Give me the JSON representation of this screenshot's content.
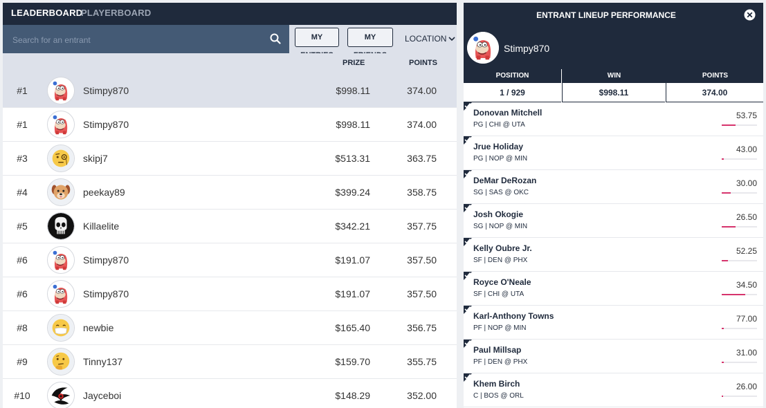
{
  "tabs": {
    "leaderboard": "LEADERBOARD",
    "playerboard": "PLAYERBOARD"
  },
  "search": {
    "placeholder": "Search for an entrant",
    "value": ""
  },
  "filters": {
    "my_entries": "MY ENTRIES",
    "my_friends": "MY FRIENDS",
    "location": "LOCATION"
  },
  "columns": {
    "prize": "PRIZE",
    "points": "POINTS"
  },
  "entries": [
    {
      "rank": "#1",
      "name": "Stimpy870",
      "prize": "$998.11",
      "points": "374.00",
      "avatar": "stimpy",
      "selected": true
    },
    {
      "rank": "#1",
      "name": "Stimpy870",
      "prize": "$998.11",
      "points": "374.00",
      "avatar": "stimpy"
    },
    {
      "rank": "#3",
      "name": "skipj7",
      "prize": "$513.31",
      "points": "363.75",
      "avatar": "monocle"
    },
    {
      "rank": "#4",
      "name": "peekay89",
      "prize": "$399.24",
      "points": "358.75",
      "avatar": "dog"
    },
    {
      "rank": "#5",
      "name": "Killaelite",
      "prize": "$342.21",
      "points": "357.75",
      "avatar": "punisher"
    },
    {
      "rank": "#6",
      "name": "Stimpy870",
      "prize": "$191.07",
      "points": "357.50",
      "avatar": "stimpy"
    },
    {
      "rank": "#6",
      "name": "Stimpy870",
      "prize": "$191.07",
      "points": "357.50",
      "avatar": "stimpy"
    },
    {
      "rank": "#8",
      "name": "newbie",
      "prize": "$165.40",
      "points": "356.75",
      "avatar": "mask"
    },
    {
      "rank": "#9",
      "name": "Tinny137",
      "prize": "$159.70",
      "points": "355.75",
      "avatar": "thinking"
    },
    {
      "rank": "#10",
      "name": "Jayceboi",
      "prize": "$148.29",
      "points": "352.00",
      "avatar": "tribal"
    }
  ],
  "lineup": {
    "title": "ENTRANT LINEUP PERFORMANCE",
    "entrant": "Stimpy870",
    "stats": [
      {
        "label": "POSITION",
        "value": "1 / 929"
      },
      {
        "label": "WIN",
        "value": "$998.11"
      },
      {
        "label": "POINTS",
        "value": "374.00"
      }
    ],
    "players": [
      {
        "name": "Donovan Mitchell",
        "info": "PG | CHI @ UTA",
        "points": "53.75",
        "progress": 0.4
      },
      {
        "name": "Jrue Holiday",
        "info": "PG | NOP @ MIN",
        "points": "43.00",
        "progress": 0.05
      },
      {
        "name": "DeMar DeRozan",
        "info": "SG | SAS @ OKC",
        "points": "30.00",
        "progress": 0.25
      },
      {
        "name": "Josh Okogie",
        "info": "SG | NOP @ MIN",
        "points": "26.50",
        "progress": 0.4
      },
      {
        "name": "Kelly Oubre Jr.",
        "info": "SF | DEN @ PHX",
        "points": "52.25",
        "progress": 0.17
      },
      {
        "name": "Royce O'Neale",
        "info": "SF | CHI @ UTA",
        "points": "34.50",
        "progress": 0.67
      },
      {
        "name": "Karl-Anthony Towns",
        "info": "PF | NOP @ MIN",
        "points": "77.00",
        "progress": 0.05
      },
      {
        "name": "Paul Millsap",
        "info": "PF | DEN @ PHX",
        "points": "31.00",
        "progress": 0.05
      },
      {
        "name": "Khem Birch",
        "info": "C | BOS @ ORL",
        "points": "26.00",
        "progress": 0.04
      }
    ]
  },
  "colors": {
    "navy": "#1f2a3c",
    "search_bg": "#445a75",
    "accent": "#d6336c",
    "header_bg": "#dde1ea"
  }
}
